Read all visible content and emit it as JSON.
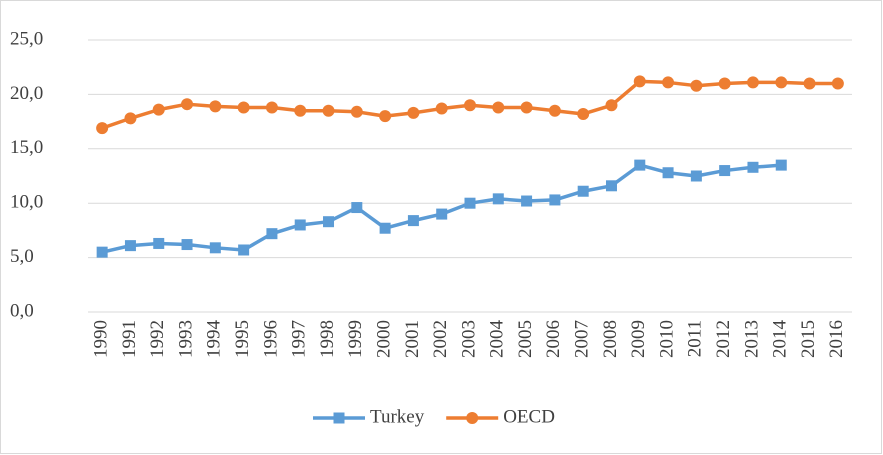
{
  "chart_data": {
    "type": "line",
    "categories": [
      "1990",
      "1991",
      "1992",
      "1993",
      "1994",
      "1995",
      "1996",
      "1997",
      "1998",
      "1999",
      "2000",
      "2001",
      "2002",
      "2003",
      "2004",
      "2005",
      "2006",
      "2007",
      "2008",
      "2009",
      "2010",
      "2011",
      "2012",
      "2013",
      "2014",
      "2015",
      "2016"
    ],
    "series": [
      {
        "name": "Turkey",
        "color": "#5b9bd5",
        "marker": "square",
        "values": [
          5.5,
          6.1,
          6.3,
          6.2,
          5.9,
          5.7,
          7.2,
          8.0,
          8.3,
          9.6,
          7.7,
          8.4,
          9.0,
          10.0,
          10.4,
          10.2,
          10.3,
          11.1,
          11.6,
          13.5,
          12.8,
          12.5,
          13.0,
          13.3,
          13.5,
          null,
          null
        ]
      },
      {
        "name": "OECD",
        "color": "#ed7d31",
        "marker": "circle",
        "values": [
          16.9,
          17.8,
          18.6,
          19.1,
          18.9,
          18.8,
          18.8,
          18.5,
          18.5,
          18.4,
          18.0,
          18.3,
          18.7,
          19.0,
          18.8,
          18.8,
          18.5,
          18.2,
          19.0,
          21.2,
          21.1,
          20.8,
          21.0,
          21.1,
          21.1,
          21.0,
          21.0
        ]
      }
    ],
    "ylim": [
      0,
      25
    ],
    "yticks": [
      {
        "value": 0,
        "label": "0,0"
      },
      {
        "value": 5,
        "label": "5,0"
      },
      {
        "value": 10,
        "label": "10,0"
      },
      {
        "value": 15,
        "label": "15,0"
      },
      {
        "value": 20,
        "label": "20,0"
      },
      {
        "value": 25,
        "label": "25,0"
      }
    ],
    "grid": true,
    "legend": "bottom"
  }
}
